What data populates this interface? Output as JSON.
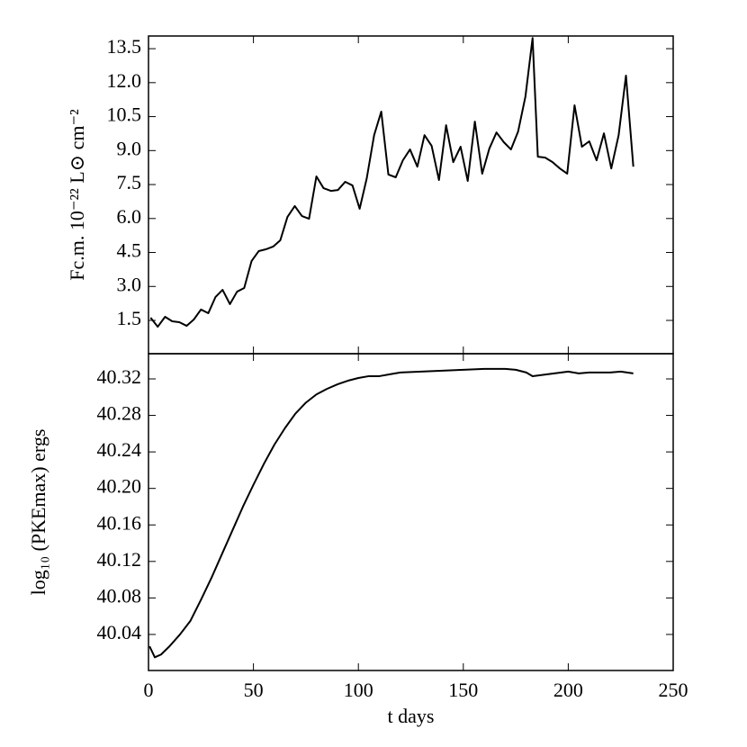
{
  "chart_data": [
    {
      "type": "line",
      "ylabel": "Fc.m. 10⁻²² L⊙ cm⁻²",
      "x": [
        1,
        4.4,
        7.9,
        11.3,
        14.7,
        18.2,
        21.6,
        25,
        28.5,
        31.9,
        35.3,
        38.8,
        42.2,
        45.6,
        49.1,
        52.5,
        55.9,
        59.4,
        62.8,
        66.2,
        69.7,
        73.1,
        76.5,
        80,
        83.4,
        86.9,
        90.3,
        93.7,
        97.2,
        100.6,
        104,
        107.5,
        110.9,
        114.3,
        117.8,
        121.2,
        124.6,
        128.1,
        131.5,
        134.9,
        138.4,
        141.8,
        145.2,
        148.7,
        152.1,
        155.5,
        159,
        162.4,
        165.8,
        169.3,
        172.7,
        176.1,
        179.6,
        183,
        185.5,
        189,
        192.5,
        196,
        199.5,
        203,
        206.5,
        210,
        213.5,
        217,
        220.5,
        224,
        227.5,
        231
      ],
      "series": [
        {
          "color": "#000000",
          "values": [
            1.62,
            1.22,
            1.66,
            1.46,
            1.42,
            1.26,
            1.54,
            1.98,
            1.82,
            2.53,
            2.85,
            2.22,
            2.77,
            2.93,
            4.12,
            4.56,
            4.64,
            4.76,
            5.04,
            6.07,
            6.55,
            6.11,
            5.99,
            7.86,
            7.34,
            7.22,
            7.26,
            7.62,
            7.46,
            6.43,
            7.78,
            9.68,
            10.72,
            7.94,
            7.82,
            8.57,
            9.05,
            8.29,
            9.68,
            9.21,
            7.7,
            10.12,
            8.49,
            9.17,
            7.66,
            10.28,
            7.98,
            9.09,
            9.8,
            9.37,
            9.05,
            9.84,
            11.39,
            13.97,
            8.73,
            8.69,
            8.49,
            8.21,
            7.98,
            11.0,
            9.17,
            9.41,
            8.57,
            9.76,
            8.21,
            9.68,
            12.31,
            8.29
          ]
        }
      ],
      "xlim": [
        0,
        250
      ],
      "xticks": [
        0,
        50,
        100,
        150,
        200,
        250
      ],
      "ylim": [
        0.03,
        14.06
      ],
      "yticks": [
        1.5,
        {
          "value": 3,
          "label": "3.0"
        },
        4.5,
        {
          "value": 6,
          "label": "6.0"
        },
        7.5,
        {
          "value": 9,
          "label": "9.0"
        },
        10.5,
        {
          "value": 12,
          "label": "12.0"
        },
        13.5
      ]
    },
    {
      "type": "line",
      "ylabel": "log₁₀ (PKEmax) ergs",
      "xlabel": "t days",
      "x": [
        0.5,
        3,
        6,
        10,
        15,
        20,
        25,
        30,
        35,
        40,
        45,
        50,
        55,
        60,
        65,
        70,
        75,
        80,
        85,
        90,
        95,
        100,
        105,
        110,
        115,
        120,
        130,
        140,
        150,
        160,
        170,
        175,
        180,
        183,
        190,
        200,
        205,
        210,
        220,
        225,
        231
      ],
      "series": [
        {
          "color": "#000000",
          "values": [
            40.027,
            40.015,
            40.018,
            40.027,
            40.04,
            40.055,
            40.078,
            40.102,
            40.128,
            40.154,
            40.18,
            40.204,
            40.227,
            40.248,
            40.266,
            40.282,
            40.294,
            40.303,
            40.309,
            40.314,
            40.318,
            40.321,
            40.323,
            40.323,
            40.325,
            40.327,
            40.328,
            40.329,
            40.33,
            40.331,
            40.331,
            40.33,
            40.327,
            40.323,
            40.325,
            40.328,
            40.326,
            40.327,
            40.327,
            40.328,
            40.326
          ]
        }
      ],
      "xlim": [
        0,
        250
      ],
      "xticks": [
        0,
        50,
        100,
        150,
        200,
        250
      ],
      "ylim": [
        40.0005,
        40.3476
      ],
      "yticks": [
        40.04,
        40.08,
        40.12,
        40.16,
        {
          "value": 40.2,
          "label": "40.20"
        },
        40.24,
        40.28,
        40.32
      ]
    }
  ]
}
